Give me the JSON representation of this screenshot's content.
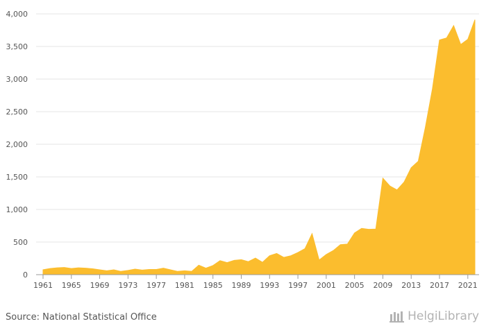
{
  "chart_data": {
    "type": "area",
    "title": "",
    "xlabel": "",
    "ylabel": "",
    "ylim": [
      0,
      4000
    ],
    "y_ticks": [
      0,
      500,
      1000,
      1500,
      2000,
      2500,
      3000,
      3500,
      4000
    ],
    "y_tick_labels": [
      "0",
      "500",
      "1,000",
      "1,500",
      "2,000",
      "2,500",
      "3,000",
      "3,500",
      "4,000"
    ],
    "x_tick_labels": [
      "1961",
      "1965",
      "1969",
      "1973",
      "1977",
      "1981",
      "1985",
      "1989",
      "1993",
      "1997",
      "2001",
      "2005",
      "2009",
      "2013",
      "2017",
      "2021"
    ],
    "grid": true,
    "color": "#FBBD2E",
    "series": [
      {
        "x": [
          1961,
          1962,
          1963,
          1964,
          1965,
          1966,
          1967,
          1968,
          1969,
          1970,
          1971,
          1972,
          1973,
          1974,
          1975,
          1976,
          1977,
          1978,
          1979,
          1980,
          1981,
          1982,
          1983,
          1984,
          1985,
          1986,
          1987,
          1988,
          1989,
          1990,
          1991,
          1992,
          1993,
          1994,
          1995,
          1996,
          1997,
          1998,
          1999,
          2000,
          2001,
          2002,
          2003,
          2004,
          2005,
          2006,
          2007,
          2008,
          2009,
          2010,
          2011,
          2012,
          2013,
          2014,
          2015,
          2016,
          2017,
          2018,
          2019,
          2020,
          2021,
          2022
        ],
        "values": [
          75,
          95,
          105,
          110,
          95,
          105,
          100,
          90,
          75,
          60,
          75,
          50,
          65,
          85,
          70,
          80,
          80,
          100,
          75,
          50,
          60,
          50,
          145,
          100,
          140,
          215,
          185,
          220,
          230,
          200,
          255,
          190,
          290,
          325,
          265,
          290,
          340,
          400,
          630,
          225,
          310,
          370,
          460,
          470,
          640,
          710,
          695,
          700,
          1480,
          1360,
          1300,
          1420,
          1640,
          1740,
          2260,
          2850,
          3600,
          3630,
          3820,
          3530,
          3610,
          3910
        ]
      }
    ]
  },
  "footer": {
    "source": "Source: National Statistical Office",
    "logo_text": "HelgiLibrary"
  }
}
